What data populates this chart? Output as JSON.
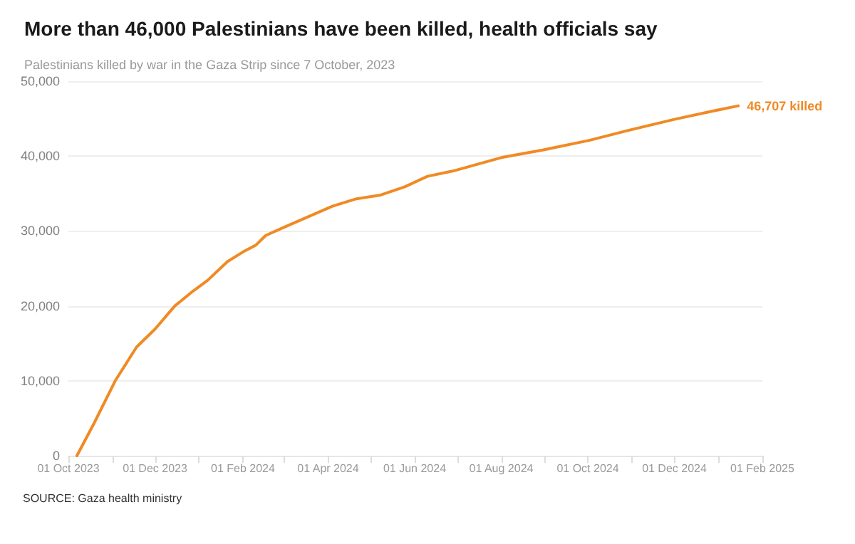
{
  "chart_data": {
    "type": "line",
    "title": "More than 46,000 Palestinians have been killed, health officials say",
    "subtitle": "Palestinians killed by war in the Gaza Strip since 7 October, 2023",
    "x": [
      "2023-10-07",
      "2023-10-19",
      "2023-11-03",
      "2023-11-18",
      "2023-12-01",
      "2023-12-15",
      "2023-12-28",
      "2024-01-07",
      "2024-01-21",
      "2024-02-01",
      "2024-02-10",
      "2024-02-17",
      "2024-03-01",
      "2024-03-18",
      "2024-04-04",
      "2024-04-21",
      "2024-05-08",
      "2024-05-25",
      "2024-06-10",
      "2024-06-30",
      "2024-08-01",
      "2024-08-30",
      "2024-10-02",
      "2024-10-29",
      "2024-12-01",
      "2024-12-28",
      "2025-01-15"
    ],
    "series": [
      {
        "color": "#f08a24",
        "values": [
          0,
          4300,
          10000,
          14500,
          16900,
          20000,
          22000,
          23400,
          25900,
          27200,
          28100,
          29400,
          30500,
          31900,
          33300,
          34300,
          34800,
          35900,
          37300,
          38100,
          39800,
          40800,
          42100,
          43400,
          44900,
          46000,
          46707
        ]
      }
    ],
    "xlim": [
      "2023-10-01",
      "2025-02-01"
    ],
    "xticks": [
      {
        "value": "2023-10-01",
        "label": "01 Oct 2023"
      },
      {
        "value": "2023-11-01",
        "label": null
      },
      {
        "value": "2023-12-01",
        "label": "01 Dec 2023"
      },
      {
        "value": "2024-01-01",
        "label": null
      },
      {
        "value": "2024-02-01",
        "label": "01 Feb 2024"
      },
      {
        "value": "2024-03-01",
        "label": null
      },
      {
        "value": "2024-04-01",
        "label": "01 Apr 2024"
      },
      {
        "value": "2024-05-01",
        "label": null
      },
      {
        "value": "2024-06-01",
        "label": "01 Jun 2024"
      },
      {
        "value": "2024-07-01",
        "label": null
      },
      {
        "value": "2024-08-01",
        "label": "01 Aug 2024"
      },
      {
        "value": "2024-09-01",
        "label": null
      },
      {
        "value": "2024-10-01",
        "label": "01 Oct 2024"
      },
      {
        "value": "2024-11-01",
        "label": null
      },
      {
        "value": "2024-12-01",
        "label": "01 Dec 2024"
      },
      {
        "value": "2025-01-01",
        "label": null
      },
      {
        "value": "2025-02-01",
        "label": "01 Feb 2025"
      }
    ],
    "ylim": [
      0,
      50000
    ],
    "yticks": [
      0,
      {
        "value": 10000,
        "label": "10,000"
      },
      {
        "value": 20000,
        "label": "20,000"
      },
      {
        "value": 30000,
        "label": "30,000"
      },
      {
        "value": 40000,
        "label": "40,000"
      },
      {
        "value": 50000,
        "label": "50,000"
      }
    ],
    "grid": "y",
    "marker": "none",
    "line_style": "solid",
    "annotations": [
      {
        "text": "46,707 killed",
        "x": "2025-01-15",
        "y": 46707
      },
      "SOURCE: Gaza health ministry"
    ]
  }
}
